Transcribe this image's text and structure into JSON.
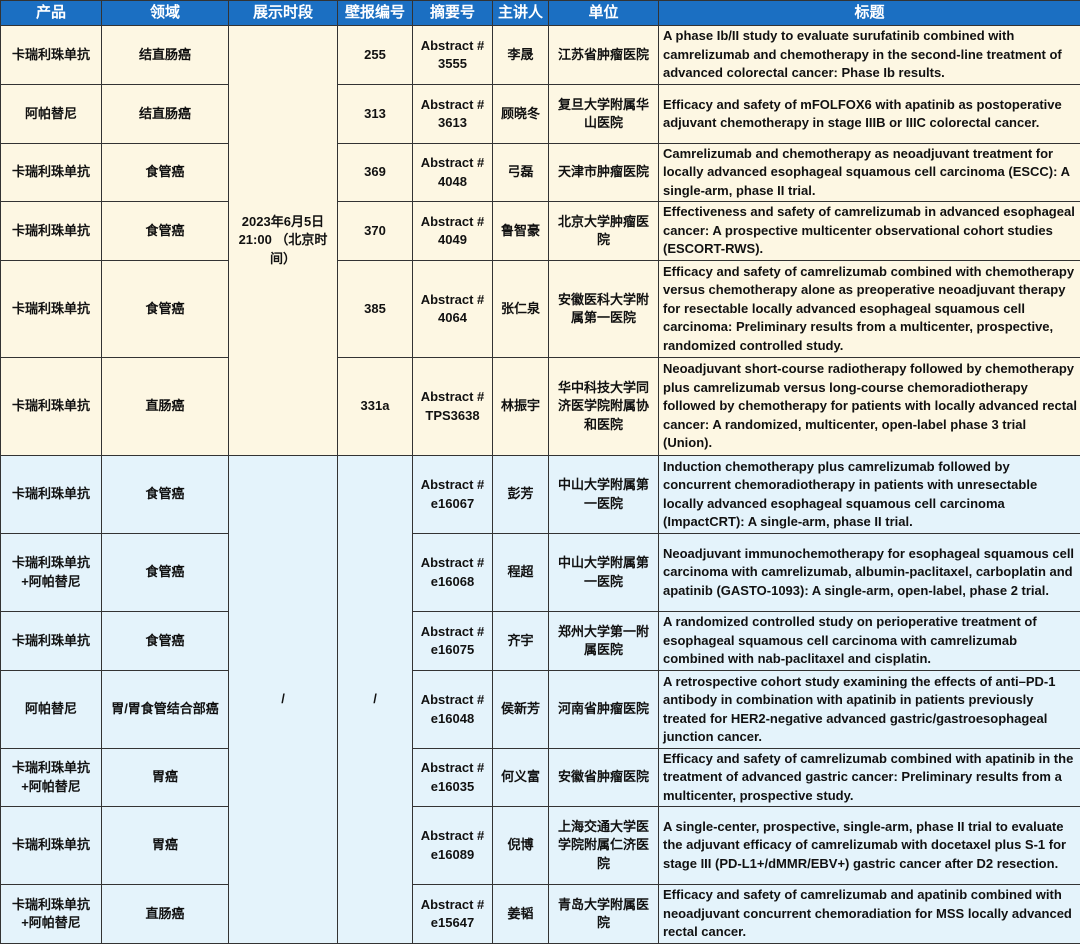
{
  "headers": [
    "产品",
    "领域",
    "展示时段",
    "壁报编号",
    "摘要号",
    "主讲人",
    "单位",
    "标题"
  ],
  "colors": {
    "header_bg": "#1b6fc2",
    "section1_bg": "#fdf7e3",
    "section2_bg": "#e4f3fb"
  },
  "section1": {
    "session": "2023年6月5日 21:00 （北京时间）",
    "rows": [
      {
        "product": "卡瑞利珠单抗",
        "area": "结直肠癌",
        "poster": "255",
        "abstract": "Abstract # 3555",
        "speaker": "李晟",
        "unit": "江苏省肿瘤医院",
        "title": "A phase Ib/II study to evaluate surufatinib combined with camrelizumab and chemotherapy in the second-line treatment of advanced colorectal cancer: Phase Ib results."
      },
      {
        "product": "阿帕替尼",
        "area": "结直肠癌",
        "poster": "313",
        "abstract": "Abstract # 3613",
        "speaker": "顾晓冬",
        "unit": "复旦大学附属华山医院",
        "title": "Efficacy and safety of mFOLFOX6 with apatinib as postoperative adjuvant chemotherapy in stage IIIB or IIIC colorectal cancer."
      },
      {
        "product": "卡瑞利珠单抗",
        "area": "食管癌",
        "poster": "369",
        "abstract": "Abstract # 4048",
        "speaker": "弓磊",
        "unit": "天津市肿瘤医院",
        "title": "Camrelizumab and chemotherapy as neoadjuvant treatment for locally advanced esophageal squamous cell carcinoma (ESCC): A single-arm, phase II trial."
      },
      {
        "product": "卡瑞利珠单抗",
        "area": "食管癌",
        "poster": "370",
        "abstract": "Abstract # 4049",
        "speaker": "鲁智豪",
        "unit": "北京大学肿瘤医院",
        "title": "Effectiveness and safety of camrelizumab in advanced esophageal cancer: A prospective multicenter observational cohort studies (ESCORT-RWS)."
      },
      {
        "product": "卡瑞利珠单抗",
        "area": "食管癌",
        "poster": "385",
        "abstract": "Abstract # 4064",
        "speaker": "张仁泉",
        "unit": "安徽医科大学附属第一医院",
        "title": "Efficacy and safety of camrelizumab combined with chemotherapy versus chemotherapy alone as preoperative neoadjuvant therapy for resectable locally advanced esophageal squamous cell carcinoma: Preliminary results from a multicenter, prospective, randomized controlled study."
      },
      {
        "product": "卡瑞利珠单抗",
        "area": "直肠癌",
        "poster": "331a",
        "abstract": "Abstract # TPS3638",
        "speaker": "林振宇",
        "unit": "华中科技大学同济医学院附属协和医院",
        "title": "Neoadjuvant short-course radiotherapy followed by chemotherapy plus camrelizumab versus long-course chemoradiotherapy followed by chemotherapy for patients with locally advanced rectal cancer: A randomized, multicenter, open-label phase 3 trial (Union)."
      }
    ]
  },
  "section2": {
    "session": "/",
    "poster": "/",
    "rows": [
      {
        "product": "卡瑞利珠单抗",
        "area": "食管癌",
        "abstract": "Abstract # e16067",
        "speaker": "彭芳",
        "unit": "中山大学附属第一医院",
        "title": "Induction chemotherapy plus camrelizumab followed by concurrent chemoradiotherapy in patients with unresectable locally advanced esophageal squamous cell carcinoma (ImpactCRT): A single-arm, phase II trial."
      },
      {
        "product": "卡瑞利珠单抗+阿帕替尼",
        "area": "食管癌",
        "abstract": "Abstract # e16068",
        "speaker": "程超",
        "unit": "中山大学附属第一医院",
        "title": "Neoadjuvant immunochemotherapy for esophageal squamous cell carcinoma with camrelizumab, albumin-paclitaxel, carboplatin and apatinib (GASTO-1093): A single-arm, open-label, phase 2 trial."
      },
      {
        "product": "卡瑞利珠单抗",
        "area": "食管癌",
        "abstract": "Abstract # e16075",
        "speaker": "齐宇",
        "unit": "郑州大学第一附属医院",
        "title": "A randomized controlled study on perioperative treatment of esophageal squamous cell carcinoma with camrelizumab combined with nab-paclitaxel and cisplatin."
      },
      {
        "product": "阿帕替尼",
        "area": "胃/胃食管结合部癌",
        "abstract": "Abstract # e16048",
        "speaker": "侯新芳",
        "unit": "河南省肿瘤医院",
        "title": "A retrospective cohort study examining the effects of anti–PD-1 antibody in combination with apatinib in patients previously treated for HER2-negative advanced gastric/gastroesophageal junction cancer."
      },
      {
        "product": "卡瑞利珠单抗+阿帕替尼",
        "area": "胃癌",
        "abstract": "Abstract # e16035",
        "speaker": "何义富",
        "unit": "安徽省肿瘤医院",
        "title": "Efficacy and safety of camrelizumab combined with apatinib in the treatment of advanced gastric cancer: Preliminary results from a multicenter, prospective study."
      },
      {
        "product": "卡瑞利珠单抗",
        "area": "胃癌",
        "abstract": "Abstract # e16089",
        "speaker": "倪博",
        "unit": "上海交通大学医学院附属仁济医院",
        "title": "A single-center, prospective, single-arm, phase II trial to evaluate the adjuvant efficacy of camrelizumab with docetaxel plus S-1 for stage III (PD-L1+/dMMR/EBV+) gastric cancer after D2 resection."
      },
      {
        "product": "卡瑞利珠单抗+阿帕替尼",
        "area": "直肠癌",
        "abstract": "Abstract # e15647",
        "speaker": "姜韬",
        "unit": "青岛大学附属医院",
        "title": "Efficacy and safety of camrelizumab and apatinib combined with neoadjuvant concurrent chemoradiation for MSS locally advanced rectal cancer."
      }
    ]
  }
}
